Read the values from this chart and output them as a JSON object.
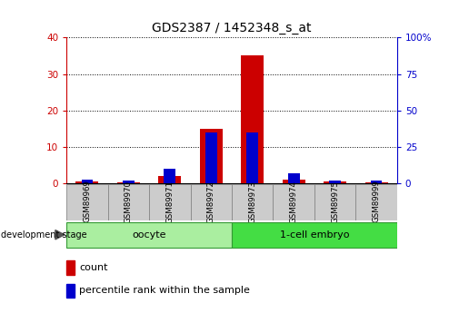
{
  "title": "GDS2387 / 1452348_s_at",
  "samples": [
    "GSM89969",
    "GSM89970",
    "GSM89971",
    "GSM89972",
    "GSM89973",
    "GSM89974",
    "GSM89975",
    "GSM89999"
  ],
  "counts": [
    0.5,
    0.3,
    2.0,
    15.0,
    35.0,
    1.0,
    0.5,
    0.3
  ],
  "percentiles": [
    2.5,
    1.5,
    10.0,
    35.0,
    35.0,
    7.0,
    2.0,
    2.0
  ],
  "left_ylim": [
    0,
    40
  ],
  "right_ylim": [
    0,
    100
  ],
  "left_yticks": [
    0,
    10,
    20,
    30,
    40
  ],
  "right_yticks": [
    0,
    25,
    50,
    75,
    100
  ],
  "right_yticklabels": [
    "0",
    "25",
    "50",
    "75",
    "100%"
  ],
  "bar_color_count": "#cc0000",
  "bar_color_percentile": "#0000cc",
  "groups": [
    {
      "label": "oocyte",
      "n": 4,
      "color": "#aaeea0"
    },
    {
      "label": "1-cell embryo",
      "n": 4,
      "color": "#44dd44"
    }
  ],
  "legend_count_label": "count",
  "legend_percentile_label": "percentile rank within the sample",
  "tick_color_left": "#cc0000",
  "tick_color_right": "#0000cc",
  "sample_box_color": "#cccccc",
  "group_border_color": "#339933"
}
